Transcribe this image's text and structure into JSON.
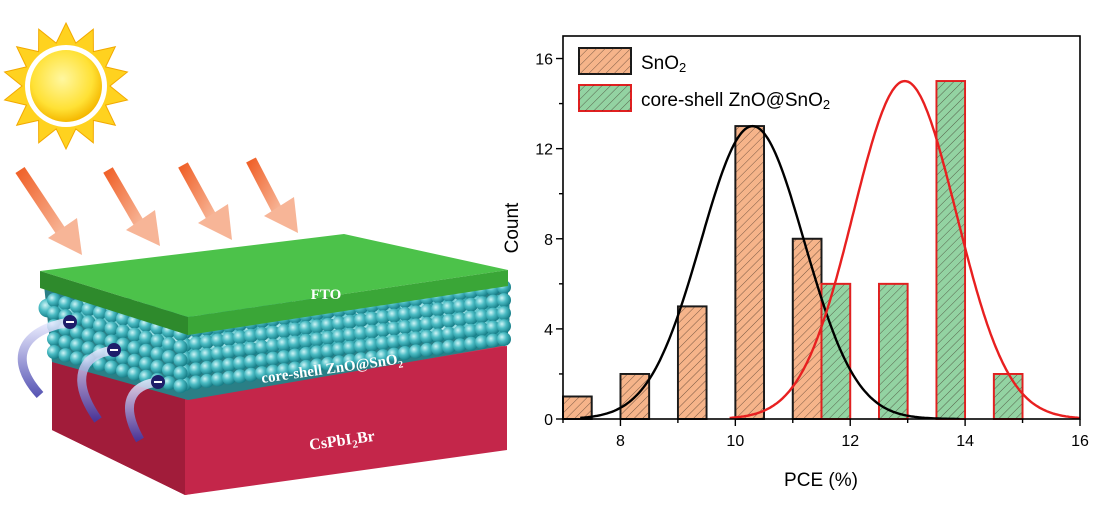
{
  "schematic": {
    "layers": {
      "top": "FTO",
      "middle": "core-shell ZnO@SnO",
      "middle_sub": "2",
      "bottom_main": "CsPbI",
      "bottom_sub": "2",
      "bottom_tail": "Br"
    },
    "colors": {
      "fto": "#3aa637",
      "spheres": "#4bbcc4",
      "perovskite": "#c82a4e",
      "sun": "#ffe135",
      "arrows": "#f07a3a"
    }
  },
  "chart_data": {
    "type": "bar",
    "xlabel": "PCE (%)",
    "ylabel": "Count",
    "xlim": [
      7,
      16
    ],
    "ylim": [
      0,
      17
    ],
    "xticks": [
      8,
      10,
      12,
      14,
      16
    ],
    "yticks": [
      0,
      4,
      8,
      12,
      16
    ],
    "bin_width": 0.5,
    "legend_position": "top-left",
    "series": [
      {
        "name": "SnO2",
        "legend_main": "SnO",
        "legend_sub": "2",
        "fill": "#f6b48a",
        "edge": "#1a1a1a",
        "bins": [
          {
            "x": 7.25,
            "count": 1
          },
          {
            "x": 8.25,
            "count": 2
          },
          {
            "x": 9.25,
            "count": 5
          },
          {
            "x": 10.25,
            "count": 13
          },
          {
            "x": 11.25,
            "count": 8
          }
        ],
        "fit": {
          "type": "gaussian",
          "mean": 10.3,
          "sigma": 0.9,
          "peak": 13,
          "color": "#000000",
          "range": [
            7.3,
            13.9
          ]
        }
      },
      {
        "name": "core-shell ZnO@SnO2",
        "legend_main": "core-shell ZnO@SnO",
        "legend_sub": "2",
        "fill": "#93d3a2",
        "edge": "#e02020",
        "bins": [
          {
            "x": 11.75,
            "count": 6
          },
          {
            "x": 12.75,
            "count": 6
          },
          {
            "x": 13.75,
            "count": 15
          },
          {
            "x": 14.75,
            "count": 2
          }
        ],
        "fit": {
          "type": "gaussian",
          "mean": 12.95,
          "sigma": 0.9,
          "peak": 15,
          "color": "#e82020",
          "range": [
            9.9,
            16
          ]
        }
      }
    ]
  }
}
